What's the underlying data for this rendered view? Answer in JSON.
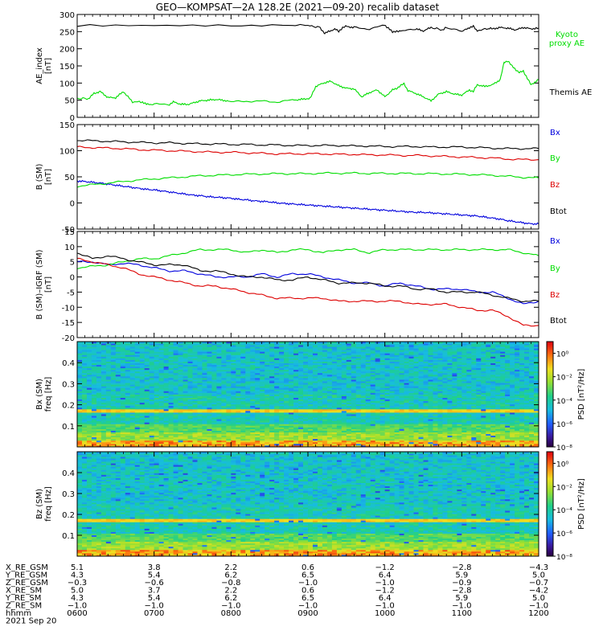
{
  "title": "GEO—KOMPSAT—2A 128.2E (2021—09‑20) recalib dataset",
  "chart_data": [
    {
      "type": "line",
      "ylabel": [
        "AE_index",
        "[nT]"
      ],
      "ylim": [
        0,
        300
      ],
      "yticks": [
        0,
        50,
        100,
        150,
        200,
        250,
        300
      ],
      "xlim": [
        600,
        1200
      ],
      "series": [
        {
          "name": "Kyoto proxy AE",
          "color": "#00dd00",
          "x": [
            600,
            615,
            622,
            630,
            640,
            650,
            660,
            672,
            685,
            690,
            700,
            720,
            725,
            735,
            745,
            755,
            760,
            770,
            780,
            790,
            800,
            820,
            840,
            860,
            880,
            890,
            900,
            903,
            910,
            920,
            930,
            940,
            950,
            960,
            970,
            980,
            990,
            1000,
            1010,
            1015,
            1020,
            1025,
            1030,
            1040,
            1050,
            1060,
            1070,
            1080,
            1090,
            1100,
            1110,
            1115,
            1120,
            1130,
            1140,
            1150,
            1155,
            1160,
            1165,
            1170,
            1175,
            1180,
            1185,
            1190,
            1200
          ],
          "y": [
            55,
            55,
            70,
            75,
            58,
            57,
            75,
            45,
            45,
            38,
            38,
            38,
            45,
            38,
            38,
            45,
            48,
            50,
            52,
            50,
            45,
            47,
            47,
            45,
            50,
            52,
            55,
            55,
            90,
            100,
            105,
            92,
            85,
            83,
            60,
            72,
            80,
            60,
            80,
            84,
            92,
            98,
            78,
            70,
            60,
            48,
            68,
            75,
            68,
            65,
            80,
            75,
            95,
            90,
            95,
            110,
            160,
            165,
            150,
            140,
            130,
            135,
            115,
            95,
            110
          ]
        },
        {
          "name": "Themis AE",
          "color": "#000000",
          "x": [
            600,
            700,
            800,
            880,
            900,
            915,
            918,
            922,
            925,
            935,
            940,
            945,
            950,
            960,
            980,
            1000,
            1005,
            1010,
            1015,
            1020,
            1040,
            1050,
            1060,
            1075,
            1080,
            1100,
            1110,
            1115,
            1120,
            1135,
            1140,
            1150,
            1160,
            1170,
            1180,
            1190,
            1200
          ],
          "y": [
            268,
            268,
            268,
            268,
            268,
            262,
            255,
            245,
            248,
            258,
            250,
            262,
            265,
            262,
            258,
            268,
            260,
            248,
            252,
            250,
            258,
            252,
            262,
            255,
            262,
            250,
            262,
            265,
            252,
            260,
            258,
            262,
            260,
            255,
            262,
            258,
            260
          ]
        }
      ]
    },
    {
      "type": "line",
      "ylabel": [
        "B (SM)",
        "[nT]"
      ],
      "ylim": [
        -50,
        150
      ],
      "yticks": [
        -50,
        0,
        50,
        100,
        150
      ],
      "xlim": [
        600,
        1200
      ],
      "series": [
        {
          "name": "Bx",
          "color": "#0000dd",
          "x": [
            600,
            610,
            620,
            630,
            640,
            650,
            660,
            670,
            680,
            690,
            700,
            710,
            720,
            730,
            740,
            750,
            760,
            770,
            780,
            790,
            800,
            810,
            820,
            830,
            840,
            850,
            860,
            870,
            880,
            890,
            900,
            910,
            920,
            930,
            940,
            950,
            960,
            970,
            980,
            990,
            1000,
            1010,
            1020,
            1030,
            1040,
            1050,
            1060,
            1070,
            1080,
            1090,
            1100,
            1110,
            1120,
            1130,
            1140,
            1150,
            1160,
            1170,
            1180,
            1190,
            1200
          ],
          "y": [
            42,
            41,
            39.5,
            38,
            36,
            34,
            32,
            30,
            28,
            26,
            25,
            23,
            21,
            19,
            17,
            15,
            14,
            12,
            11,
            10,
            9,
            7,
            6,
            4,
            3,
            2,
            0,
            -1,
            -2,
            -3,
            -4,
            -5,
            -6,
            -7,
            -8,
            -9,
            -10,
            -11,
            -12,
            -13,
            -14,
            -15,
            -16,
            -17,
            -18,
            -18,
            -19,
            -20,
            -21,
            -22,
            -23,
            -24,
            -25,
            -27,
            -29,
            -31,
            -34,
            -36,
            -38,
            -40,
            -40
          ]
        },
        {
          "name": "By",
          "color": "#00dd00",
          "x": [
            600,
            620,
            640,
            660,
            680,
            700,
            720,
            740,
            760,
            780,
            800,
            820,
            840,
            860,
            880,
            900,
            920,
            940,
            960,
            980,
            1000,
            1020,
            1040,
            1060,
            1080,
            1100,
            1120,
            1140,
            1160,
            1180,
            1200
          ],
          "y": [
            32,
            35,
            38,
            41,
            44,
            46,
            48,
            50,
            52,
            53,
            54,
            55,
            55.5,
            56,
            56,
            56,
            57,
            57,
            57,
            56.5,
            56.5,
            56.5,
            56,
            56,
            55.5,
            55,
            54,
            53,
            51,
            49,
            48
          ]
        },
        {
          "name": "Bz",
          "color": "#dd0000",
          "x": [
            600,
            620,
            640,
            660,
            680,
            700,
            720,
            740,
            760,
            780,
            800,
            820,
            840,
            860,
            880,
            900,
            920,
            940,
            960,
            980,
            1000,
            1020,
            1040,
            1060,
            1080,
            1100,
            1120,
            1140,
            1160,
            1180,
            1200
          ],
          "y": [
            107,
            106,
            105,
            104,
            102,
            101,
            100,
            99,
            98,
            97,
            97,
            96,
            95,
            94,
            94,
            94,
            94,
            93,
            93,
            92,
            92,
            91,
            91,
            90,
            89,
            88,
            87,
            86,
            84,
            83,
            83
          ]
        },
        {
          "name": "Btot",
          "color": "#000000",
          "x": [
            600,
            620,
            640,
            660,
            680,
            700,
            720,
            740,
            760,
            780,
            800,
            820,
            840,
            860,
            880,
            900,
            920,
            940,
            960,
            980,
            1000,
            1020,
            1040,
            1060,
            1080,
            1100,
            1120,
            1140,
            1160,
            1180,
            1200
          ],
          "y": [
            120,
            119,
            118,
            117,
            116,
            115,
            115,
            114,
            113,
            113,
            112,
            112,
            111,
            111,
            110,
            110,
            110,
            110,
            109,
            109,
            108,
            108,
            108,
            107,
            107,
            107,
            106,
            105,
            104,
            104,
            104
          ]
        }
      ]
    },
    {
      "type": "line",
      "ylabel": [
        "B (SM)–IGRF (SM)",
        "[nT]"
      ],
      "ylim": [
        -20,
        15
      ],
      "yticks": [
        -20,
        -15,
        -10,
        -5,
        0,
        5,
        10,
        15
      ],
      "xlim": [
        600,
        1200
      ],
      "series": [
        {
          "name": "Bx",
          "color": "#0000dd",
          "x": [
            600,
            620,
            640,
            660,
            680,
            700,
            720,
            740,
            760,
            780,
            800,
            820,
            840,
            860,
            880,
            900,
            920,
            940,
            960,
            980,
            1000,
            1020,
            1040,
            1060,
            1080,
            1100,
            1120,
            1140,
            1160,
            1180,
            1200
          ],
          "y": [
            5,
            5,
            4,
            4.5,
            4,
            3,
            2,
            2,
            1,
            0,
            0,
            0,
            1,
            0,
            1,
            1,
            0,
            -1,
            -2,
            -2,
            -3,
            -2,
            -3,
            -4,
            -4,
            -4,
            -5,
            -5,
            -7,
            -9,
            -8
          ]
        },
        {
          "name": "By",
          "color": "#00dd00",
          "x": [
            600,
            620,
            640,
            660,
            680,
            700,
            720,
            740,
            760,
            780,
            800,
            820,
            840,
            860,
            880,
            900,
            920,
            940,
            960,
            980,
            1000,
            1020,
            1040,
            1060,
            1080,
            1100,
            1120,
            1140,
            1160,
            1180,
            1200
          ],
          "y": [
            3,
            3.5,
            4,
            5,
            6,
            6,
            7,
            8,
            9,
            9,
            9,
            8,
            9,
            8,
            9,
            9,
            8,
            9,
            9,
            8,
            9,
            9,
            9,
            9,
            9,
            9,
            9,
            9,
            9,
            8,
            7
          ]
        },
        {
          "name": "Bz",
          "color": "#dd0000",
          "x": [
            600,
            620,
            640,
            660,
            680,
            700,
            720,
            740,
            760,
            780,
            800,
            820,
            840,
            860,
            880,
            900,
            920,
            940,
            960,
            980,
            1000,
            1020,
            1040,
            1060,
            1080,
            1100,
            1120,
            1140,
            1160,
            1180,
            1200
          ],
          "y": [
            6,
            5,
            4,
            3,
            1,
            0,
            -1,
            -2,
            -3,
            -3,
            -4,
            -5,
            -6,
            -7,
            -7,
            -7,
            -7,
            -8,
            -8,
            -8,
            -8,
            -8,
            -9,
            -9,
            -9,
            -10,
            -11,
            -11,
            -13,
            -16,
            -16
          ]
        },
        {
          "name": "Btot",
          "color": "#000000",
          "x": [
            600,
            620,
            640,
            660,
            680,
            700,
            720,
            740,
            760,
            780,
            800,
            820,
            840,
            860,
            880,
            900,
            920,
            940,
            960,
            980,
            1000,
            1020,
            1040,
            1060,
            1080,
            1100,
            1120,
            1140,
            1160,
            1180,
            1200
          ],
          "y": [
            8,
            6,
            7,
            6,
            5,
            4,
            4,
            4,
            2,
            2,
            1,
            0,
            0,
            -1,
            -1,
            0,
            -1,
            -2,
            -2,
            -2,
            -3,
            -3,
            -4,
            -4,
            -5,
            -5,
            -5,
            -6,
            -7,
            -8,
            -8
          ]
        }
      ]
    },
    {
      "type": "heatmap",
      "component": "Bx (SM)",
      "ylabel": [
        "Bx (SM)",
        "freq [Hz]"
      ],
      "ylim": [
        0,
        0.5
      ],
      "yticks": [
        0.1,
        0.2,
        0.3,
        0.4
      ],
      "xlim": [
        600,
        1200
      ],
      "colorbar": {
        "label": "PSD [nT²/Hz]",
        "scale": "log",
        "range": [
          1e-08,
          10.0
        ],
        "ticks": [
          "10⁰",
          "10⁻²",
          "10⁻⁴",
          "10⁻⁶"
        ]
      },
      "notes": [
        "strong band near 0.17 Hz",
        "high power below 0.03 Hz"
      ]
    },
    {
      "type": "heatmap",
      "component": "Bz (SM)",
      "ylabel": [
        "Bz (SM)",
        "freq [Hz]"
      ],
      "ylim": [
        0,
        0.5
      ],
      "yticks": [
        0.1,
        0.2,
        0.3,
        0.4
      ],
      "xlim": [
        600,
        1200
      ],
      "colorbar": {
        "label": "PSD [nT²/Hz]",
        "scale": "log",
        "range": [
          1e-08,
          10.0
        ],
        "ticks": [
          "10⁰",
          "10⁻²",
          "10⁻⁴",
          "10⁻⁶"
        ]
      },
      "notes": [
        "strong band near 0.17 Hz",
        "high power below 0.03 Hz"
      ]
    }
  ],
  "ephemeris": {
    "rows": [
      {
        "label": "X_RE_GSM",
        "values": [
          "5.1",
          "3.8",
          "2.2",
          "0.6",
          "−1.2",
          "−2.8",
          "−4.3"
        ]
      },
      {
        "label": "Y_RE_GSM",
        "values": [
          "4.3",
          "5.4",
          "6.2",
          "6.5",
          "6.4",
          "5.9",
          "5.0"
        ]
      },
      {
        "label": "Z_RE_GSM",
        "values": [
          "−0.3",
          "−0.6",
          "−0.8",
          "−1.0",
          "−1.0",
          "−0.9",
          "−0.7"
        ]
      },
      {
        "label": "X_RE_SM",
        "values": [
          "5.0",
          "3.7",
          "2.2",
          "0.6",
          "−1.2",
          "−2.8",
          "−4.2"
        ]
      },
      {
        "label": "Y_RE_SM",
        "values": [
          "4.3",
          "5.4",
          "6.2",
          "6.5",
          "6.4",
          "5.9",
          "5.0"
        ]
      },
      {
        "label": "Z_RE_SM",
        "values": [
          "−1.0",
          "−1.0",
          "−1.0",
          "−1.0",
          "−1.0",
          "−1.0",
          "−1.0"
        ]
      },
      {
        "label": "hhmm",
        "values": [
          "0600",
          "0700",
          "0800",
          "0900",
          "1000",
          "1100",
          "1200"
        ]
      }
    ],
    "date": "2021 Sep 20"
  }
}
